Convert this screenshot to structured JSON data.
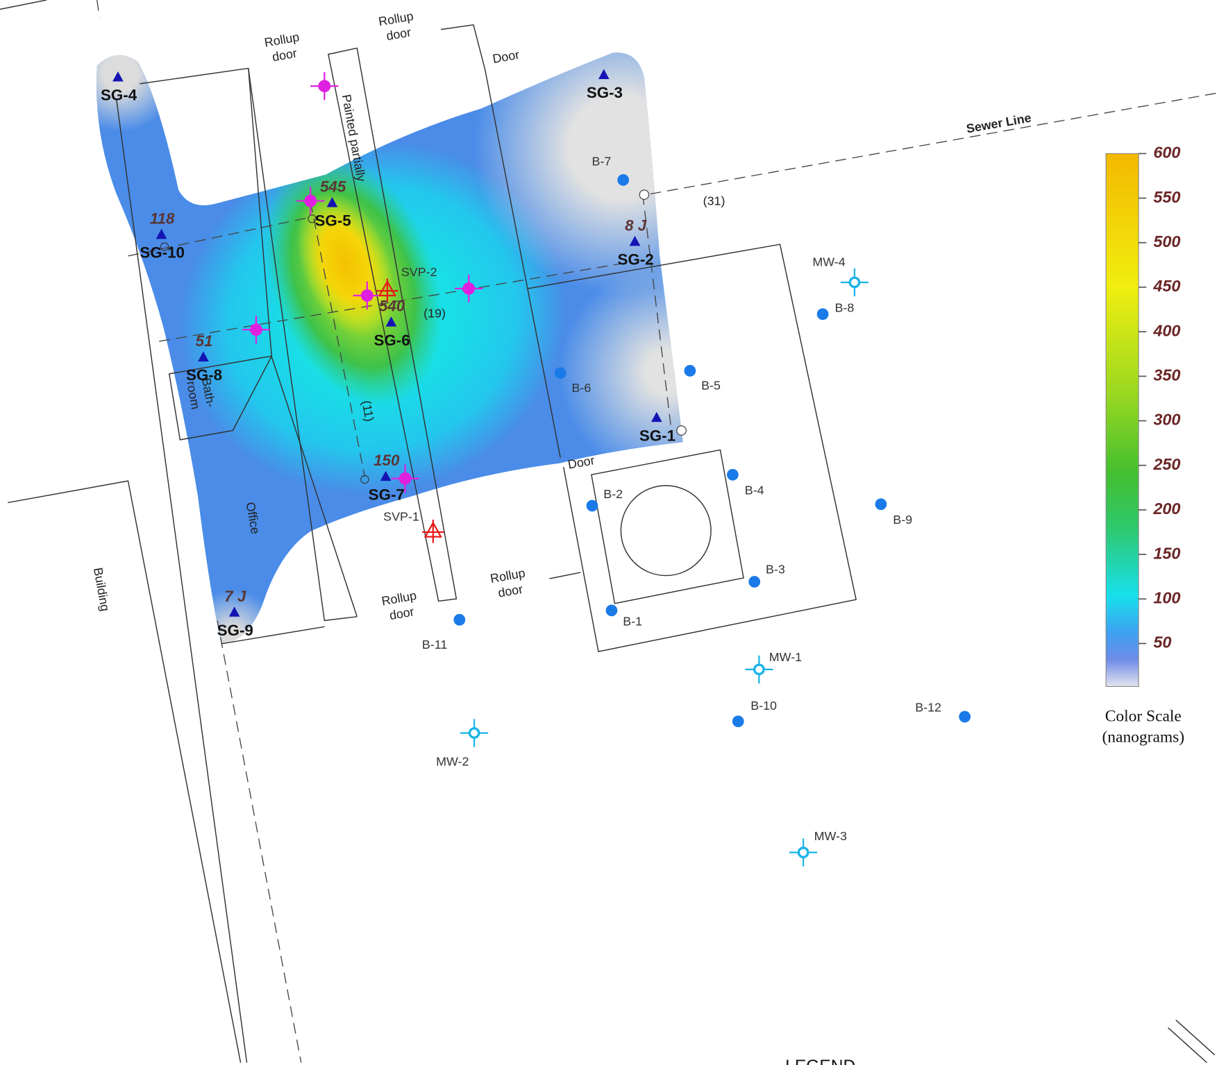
{
  "sample_points": [
    {
      "label": "SG-1"
    },
    {
      "label": "SG-2",
      "result": "8 J"
    },
    {
      "label": "SG-3"
    },
    {
      "label": "SG-4"
    },
    {
      "label": "SG-5",
      "result": "545"
    },
    {
      "label": "SG-6",
      "result": "540"
    },
    {
      "label": "SG-7",
      "result": "150"
    },
    {
      "label": "SG-8",
      "result": "51"
    },
    {
      "label": "SG-9",
      "result": "7 J"
    },
    {
      "label": "SG-10",
      "result": "118"
    }
  ],
  "borings": [
    "B-1",
    "B-2",
    "B-3",
    "B-4",
    "B-5",
    "B-6",
    "B-7",
    "B-8",
    "B-9",
    "B-10",
    "B-11",
    "B-12"
  ],
  "wells": [
    "MW-1",
    "MW-2",
    "MW-3",
    "MW-4"
  ],
  "vapor_points": [
    "SVP-1",
    "SVP-2"
  ],
  "annotations": [
    "Sewer Line",
    "(31)",
    "(19)",
    "(11)"
  ],
  "building_labels": [
    {
      "lines": [
        "Rollup",
        "door"
      ]
    },
    {
      "lines": [
        "Rollup",
        "door"
      ]
    },
    {
      "lines": [
        "Rollup",
        "door"
      ]
    },
    {
      "lines": [
        "Rollup",
        "door"
      ]
    },
    {
      "lines": [
        "Door"
      ]
    },
    {
      "lines": [
        "Door"
      ]
    },
    {
      "lines": [
        "Painted partially"
      ]
    },
    {
      "lines": [
        "Bath-",
        "room"
      ]
    },
    {
      "lines": [
        "Office"
      ]
    },
    {
      "lines": [
        "Building"
      ]
    }
  ],
  "color_scale": {
    "title": [
      "Color Scale",
      "(nanograms)"
    ],
    "range": [
      0,
      600
    ],
    "ticks": [
      50,
      100,
      150,
      200,
      250,
      300,
      350,
      400,
      450,
      500,
      550,
      600
    ]
  },
  "legend_heading": "LEGEND"
}
